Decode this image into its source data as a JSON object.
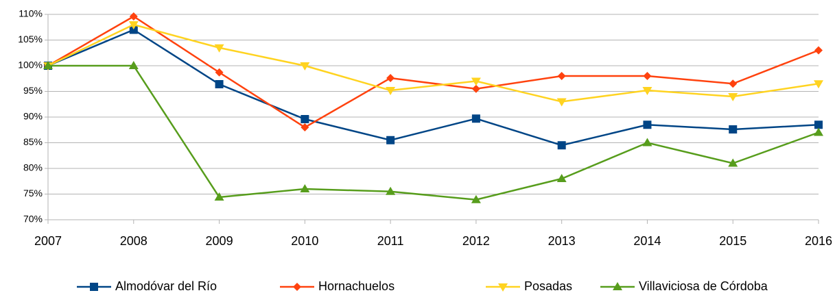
{
  "chart_data": {
    "type": "line",
    "categories": [
      "2007",
      "2008",
      "2009",
      "2010",
      "2011",
      "2012",
      "2013",
      "2014",
      "2015",
      "2016"
    ],
    "series": [
      {
        "name": "Almodóvar del Río",
        "color": "#004586",
        "marker": "square",
        "values": [
          100,
          107,
          96.4,
          89.6,
          85.5,
          89.7,
          84.5,
          88.5,
          87.6,
          88.5
        ]
      },
      {
        "name": "Hornachuelos",
        "color": "#ff420e",
        "marker": "diamond",
        "values": [
          100,
          109.6,
          98.7,
          88,
          97.6,
          95.5,
          98,
          98,
          96.5,
          103
        ]
      },
      {
        "name": "Posadas",
        "color": "#ffd320",
        "marker": "triangle-down",
        "values": [
          100,
          108,
          103.5,
          100,
          95.2,
          97,
          93,
          95.2,
          94,
          96.5
        ]
      },
      {
        "name": "Villaviciosa de Córdoba",
        "color": "#579d1c",
        "marker": "triangle-up",
        "values": [
          100,
          100,
          74.4,
          76,
          75.5,
          73.9,
          78,
          85,
          81,
          87
        ]
      }
    ],
    "ylim": [
      70,
      110
    ],
    "yticks": [
      {
        "value": 70,
        "label": "70%"
      },
      {
        "value": 75,
        "label": "75%"
      },
      {
        "value": 80,
        "label": "80%"
      },
      {
        "value": 85,
        "label": "85%"
      },
      {
        "value": 90,
        "label": "90%"
      },
      {
        "value": 95,
        "label": "95%"
      },
      {
        "value": 100,
        "label": "100%"
      },
      {
        "value": 105,
        "label": "105%"
      },
      {
        "value": 110,
        "label": "110%"
      }
    ],
    "grid": true,
    "legend": "bottom"
  }
}
